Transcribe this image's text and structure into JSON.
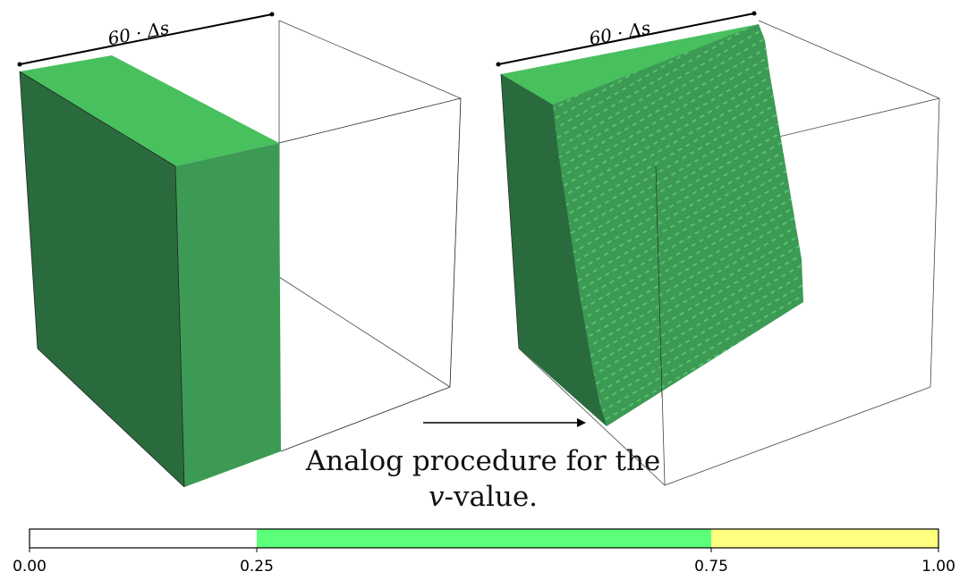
{
  "panels": [
    {
      "dimension_label": "60 · Δs"
    },
    {
      "dimension_label": "60 · Δs"
    }
  ],
  "caption": {
    "line1": "Analog procedure for the",
    "line2_var": "v",
    "line2_rest": "-value."
  },
  "colorbar": {
    "ticks": [
      "0.00",
      "0.25",
      "0.75",
      "1.00"
    ],
    "segments": [
      {
        "from": 0.0,
        "to": 0.25,
        "color": "#ffffff"
      },
      {
        "from": 0.25,
        "to": 0.75,
        "color": "#5cff7a"
      },
      {
        "from": 0.75,
        "to": 1.0,
        "color": "#ffff80"
      }
    ]
  },
  "colors": {
    "face_dark": "#2a6b3e",
    "face_mid": "#3c9a55",
    "face_top": "#48c05e",
    "box_edge": "#444444"
  }
}
